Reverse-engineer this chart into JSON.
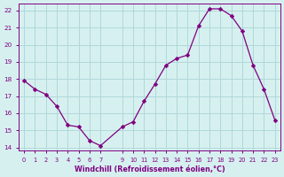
{
  "x": [
    0,
    1,
    2,
    3,
    4,
    5,
    6,
    7,
    9,
    10,
    11,
    12,
    13,
    14,
    15,
    16,
    17,
    18,
    19,
    20,
    21,
    22,
    23
  ],
  "y": [
    17.9,
    17.4,
    17.1,
    16.4,
    15.3,
    15.2,
    14.4,
    14.1,
    15.2,
    15.5,
    16.7,
    17.7,
    18.8,
    19.2,
    19.4,
    21.1,
    22.1,
    22.1,
    21.7,
    20.8,
    18.8,
    17.4,
    15.6
  ],
  "line_color": "#800080",
  "marker_color": "#800080",
  "bg_color": "#d6f0f0",
  "grid_color": "#b0d8d8",
  "xlabel": "Windchill (Refroidissement éolien,°C)",
  "ylim": [
    13.8,
    22.4
  ],
  "xlim": [
    -0.5,
    23.5
  ],
  "yticks": [
    14,
    15,
    16,
    17,
    18,
    19,
    20,
    21,
    22
  ],
  "xticks": [
    0,
    1,
    2,
    3,
    4,
    5,
    6,
    7,
    9,
    10,
    11,
    12,
    13,
    14,
    15,
    16,
    17,
    18,
    19,
    20,
    21,
    22,
    23
  ],
  "tick_color": "#800080",
  "label_color": "#800080"
}
